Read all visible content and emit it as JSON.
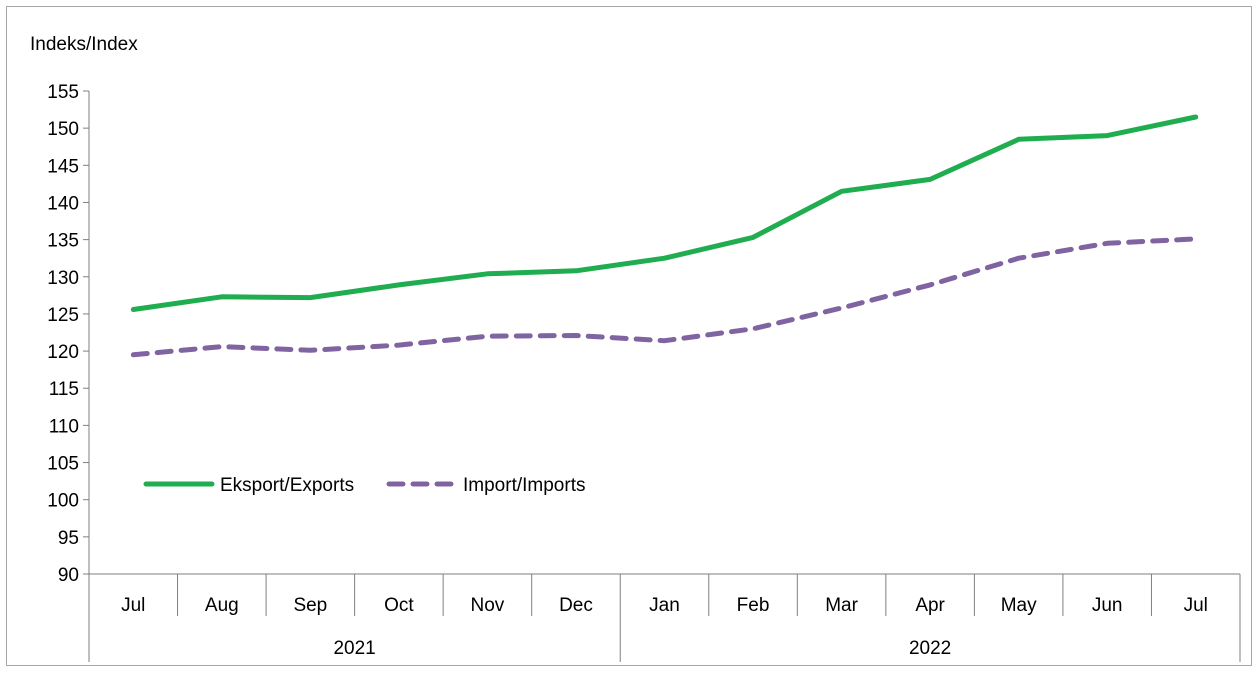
{
  "chart_data": {
    "type": "line",
    "ylabel": "Indeks/Index",
    "ylim": [
      90,
      155
    ],
    "yticks": [
      90,
      95,
      100,
      105,
      110,
      115,
      120,
      125,
      130,
      135,
      140,
      145,
      150,
      155
    ],
    "categories": [
      "Jul",
      "Aug",
      "Sep",
      "Oct",
      "Nov",
      "Dec",
      "Jan",
      "Feb",
      "Mar",
      "Apr",
      "May",
      "Jun",
      "Jul"
    ],
    "year_groups": [
      {
        "label": "2021",
        "count": 6
      },
      {
        "label": "2022",
        "count": 7
      }
    ],
    "legend_position": "lower-left",
    "grid": false,
    "series": [
      {
        "name": "Eksport/Exports",
        "color": "#1fad4f",
        "dash": "solid",
        "values": [
          125.6,
          127.3,
          127.2,
          128.9,
          130.4,
          130.8,
          132.5,
          135.3,
          141.5,
          143.1,
          148.5,
          149.0,
          151.5
        ]
      },
      {
        "name": "Import/Imports",
        "color": "#8064a2",
        "dash": "dashed",
        "values": [
          119.5,
          120.6,
          120.1,
          120.8,
          122.0,
          122.1,
          121.4,
          123.0,
          125.8,
          128.9,
          132.5,
          134.5,
          135.1
        ]
      }
    ]
  }
}
